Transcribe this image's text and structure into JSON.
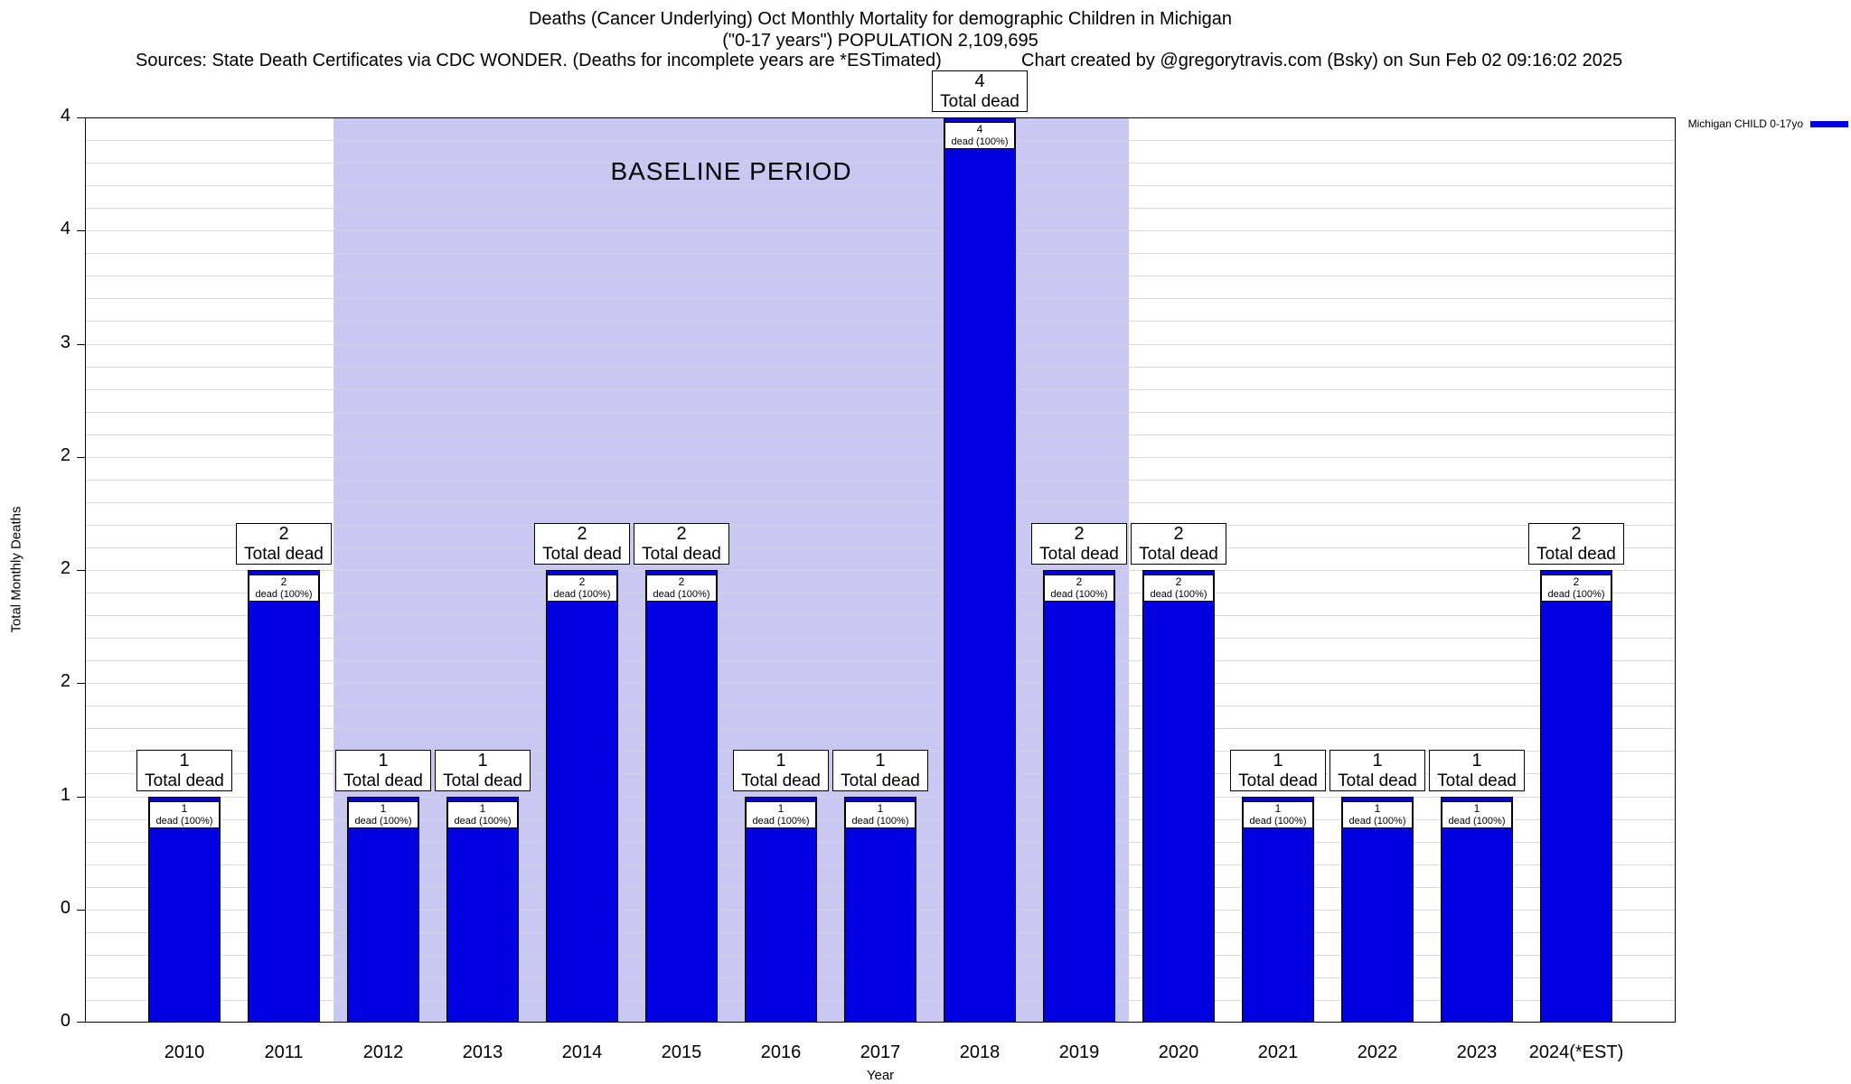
{
  "header": {
    "title_line1": "Deaths (Cancer Underlying) Oct Monthly Mortality for demographic Children in Michigan",
    "title_line2": "(\"0-17 years\") POPULATION 2,109,695",
    "sources": "Sources: State Death Certificates via CDC WONDER. (Deaths for incomplete years are *ESTimated)",
    "credit": "Chart created by @gregorytravis.com (Bsky) on Sun Feb 02 09:16:02 2025"
  },
  "legend": {
    "label": "Michigan CHILD 0-17yo"
  },
  "axes": {
    "ylabel": "Total Monthly Deaths",
    "xlabel": "Year",
    "y_tick_labels_bottom_to_top": [
      "0",
      "0",
      "1",
      "2",
      "2",
      "2",
      "3",
      "4",
      "4"
    ]
  },
  "colors": {
    "bar": "#0000e0",
    "baseline_region": "#c8c8f2",
    "grid": "#d4d4d4",
    "axis": "#000000",
    "label_box_bg": "#ffffff"
  },
  "chart_data": {
    "type": "bar",
    "title": "Deaths (Cancer Underlying) Oct Monthly Mortality for demographic Children in Michigan (\"0-17 years\") POPULATION 2,109,695",
    "xlabel": "Year",
    "ylabel": "Total Monthly Deaths",
    "ylim": [
      0,
      4
    ],
    "grid": true,
    "grid_minor_step": 0.1,
    "y_tick_step": 0.5,
    "legend_position": "top-right",
    "categories": [
      "2010",
      "2011",
      "2012",
      "2013",
      "2014",
      "2015",
      "2016",
      "2017",
      "2018",
      "2019",
      "2020",
      "2021",
      "2022",
      "2023",
      "2024(*EST)"
    ],
    "series": [
      {
        "name": "Michigan CHILD 0-17yo",
        "values": [
          1,
          2,
          1,
          1,
          2,
          2,
          1,
          1,
          4,
          2,
          2,
          1,
          1,
          1,
          2
        ]
      }
    ],
    "bar_top_label_suffix": "Total dead",
    "bar_inner_label_suffix": "dead (100%)",
    "bar_inner_label_pct": "100%",
    "baseline_period": {
      "label": "BASELINE PERIOD",
      "from": "2012",
      "to": "2019"
    }
  }
}
